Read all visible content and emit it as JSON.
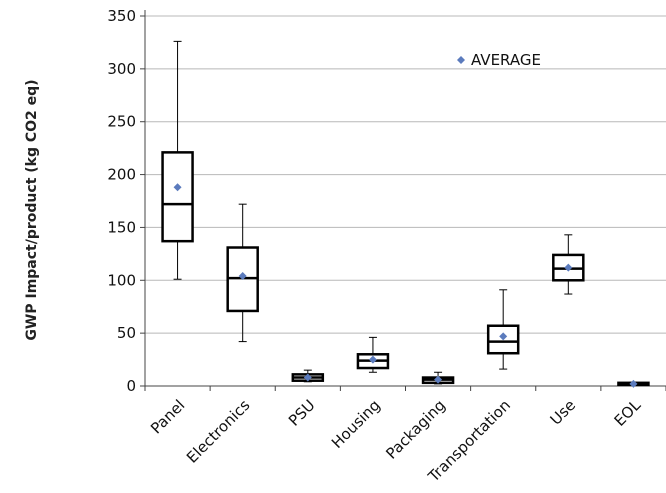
{
  "chart_data": {
    "type": "box",
    "ylabel": "GWP Impact/product (kg CO2 eq)",
    "xlabel": "",
    "ylim": [
      0,
      350
    ],
    "yticks": [
      0,
      50,
      100,
      150,
      200,
      250,
      300,
      350
    ],
    "grid": true,
    "legend": {
      "position": "top-right",
      "entries": [
        {
          "name": "AVERAGE",
          "marker": "diamond"
        }
      ]
    },
    "colors": {
      "average_marker": "#5b7bbd",
      "box": "#000000",
      "grid": "#b8b8b8"
    },
    "categories": [
      "Panel",
      "Electronics",
      "PSU",
      "Housing",
      "Packaging",
      "Transportation",
      "Use",
      "EOL"
    ],
    "boxes": [
      {
        "min": 101,
        "q1": 137,
        "median": 172,
        "q3": 221,
        "max": 326,
        "mean": 188
      },
      {
        "min": 42,
        "q1": 71,
        "median": 102,
        "q3": 131,
        "max": 172,
        "mean": 104
      },
      {
        "min": 4,
        "q1": 5,
        "median": 8,
        "q3": 11,
        "max": 15,
        "mean": 8
      },
      {
        "min": 13,
        "q1": 17,
        "median": 24,
        "q3": 30,
        "max": 46,
        "mean": 25
      },
      {
        "min": 2,
        "q1": 3,
        "median": 6,
        "q3": 8,
        "max": 13,
        "mean": 6
      },
      {
        "min": 16,
        "q1": 31,
        "median": 42,
        "q3": 57,
        "max": 91,
        "mean": 47
      },
      {
        "min": 87,
        "q1": 100,
        "median": 111,
        "q3": 124,
        "max": 143,
        "mean": 112
      },
      {
        "min": 1,
        "q1": 1.5,
        "median": 2,
        "q3": 3,
        "max": 3.5,
        "mean": 2
      }
    ]
  }
}
